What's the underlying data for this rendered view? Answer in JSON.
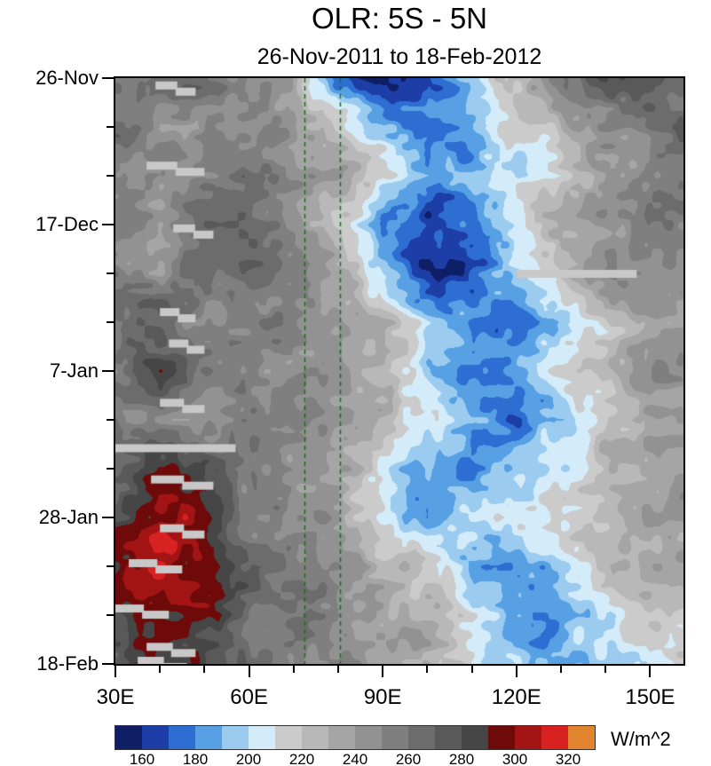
{
  "title": "OLR: 5S - 5N",
  "subtitle": "26-Nov-2011 to 18-Feb-2012",
  "colorbar_unit": "W/m^2",
  "chart_data": {
    "type": "heatmap",
    "title": "OLR: 5S - 5N",
    "subtitle": "26-Nov-2011 to 18-Feb-2012",
    "description": "Time-longitude (Hovmoller) plot of outgoing longwave radiation averaged 5S-5N",
    "x_axis": {
      "tick_labels": [
        "30E",
        "60E",
        "90E",
        "120E",
        "150E"
      ],
      "tick_values": [
        30,
        60,
        90,
        120,
        150
      ],
      "minor_step": 10,
      "range": [
        30,
        157.5
      ]
    },
    "y_axis": {
      "tick_labels": [
        "26-Nov",
        "17-Dec",
        "7-Jan",
        "28-Jan",
        "18-Feb"
      ],
      "tick_days": [
        0,
        21,
        42,
        63,
        84
      ],
      "minor_step_days": 7,
      "range_days": [
        0,
        84
      ],
      "start_date": "26-Nov-2011",
      "end_date": "18-Feb-2012"
    },
    "grid": {
      "lons": [
        30,
        40,
        50,
        60,
        70,
        80,
        90,
        100,
        110,
        120,
        130,
        140,
        150
      ],
      "times_days": [
        0,
        7,
        14,
        21,
        28,
        35,
        42,
        49,
        56,
        63,
        70,
        77,
        84
      ],
      "olr_values": [
        [
          252,
          248,
          258,
          250,
          240,
          175,
          160,
          185,
          205,
          235,
          255,
          272,
          268
        ],
        [
          258,
          252,
          246,
          252,
          248,
          225,
          195,
          170,
          185,
          215,
          235,
          250,
          262
        ],
        [
          250,
          244,
          256,
          262,
          252,
          238,
          222,
          196,
          182,
          198,
          218,
          238,
          252
        ],
        [
          262,
          240,
          268,
          256,
          248,
          212,
          178,
          162,
          178,
          208,
          238,
          252,
          258
        ],
        [
          255,
          250,
          262,
          266,
          246,
          232,
          188,
          158,
          172,
          198,
          228,
          242,
          252
        ],
        [
          252,
          270,
          246,
          252,
          256,
          244,
          228,
          202,
          178,
          168,
          188,
          218,
          238
        ],
        [
          262,
          292,
          266,
          250,
          242,
          246,
          222,
          192,
          178,
          192,
          208,
          228,
          242
        ],
        [
          256,
          252,
          246,
          256,
          250,
          240,
          228,
          212,
          188,
          178,
          198,
          218,
          232
        ],
        [
          272,
          296,
          286,
          260,
          250,
          244,
          212,
          188,
          184,
          196,
          212,
          228,
          238
        ],
        [
          282,
          302,
          290,
          264,
          254,
          244,
          204,
          174,
          196,
          212,
          222,
          232,
          242
        ],
        [
          292,
          312,
          300,
          270,
          254,
          248,
          234,
          212,
          192,
          184,
          202,
          218,
          232
        ],
        [
          286,
          306,
          294,
          264,
          258,
          250,
          240,
          224,
          204,
          188,
          184,
          202,
          222
        ],
        [
          272,
          296,
          284,
          258,
          254,
          250,
          244,
          230,
          214,
          198,
          188,
          196,
          212
        ]
      ]
    },
    "reference_lines": {
      "color": "#0a7a0a",
      "dash": true,
      "lons": [
        72.5,
        80.5
      ]
    },
    "missing_color": "#c8c8c8",
    "missing_blocks": [
      {
        "day": 1.5,
        "lon0": 39,
        "lon1": 48
      },
      {
        "day": 13,
        "lon0": 37,
        "lon1": 50
      },
      {
        "day": 22,
        "lon0": 43,
        "lon1": 52
      },
      {
        "day": 28,
        "lon0": 120,
        "lon1": 147
      },
      {
        "day": 34,
        "lon0": 40,
        "lon1": 48
      },
      {
        "day": 38.5,
        "lon0": 42,
        "lon1": 50
      },
      {
        "day": 47,
        "lon0": 40,
        "lon1": 50
      },
      {
        "day": 53,
        "lon0": 30,
        "lon1": 57
      },
      {
        "day": 58,
        "lon0": 38,
        "lon1": 52
      },
      {
        "day": 65,
        "lon0": 40,
        "lon1": 50
      },
      {
        "day": 70,
        "lon0": 33,
        "lon1": 45
      },
      {
        "day": 76.5,
        "lon0": 30,
        "lon1": 42
      },
      {
        "day": 82,
        "lon0": 37,
        "lon1": 48
      },
      {
        "day": 84,
        "lon0": 35,
        "lon1": 46
      }
    ],
    "colorbar": {
      "levels": [
        150,
        160,
        170,
        180,
        190,
        200,
        210,
        220,
        230,
        240,
        250,
        260,
        270,
        280,
        290,
        300,
        310,
        320,
        330
      ],
      "colors": [
        "#0e1f66",
        "#1c3ea6",
        "#2e6ed2",
        "#57a0e4",
        "#9bccf0",
        "#d4ecf9",
        "#cbcbcb",
        "#b8b8b8",
        "#a5a5a5",
        "#929292",
        "#7f7f7f",
        "#6c6c6c",
        "#595959",
        "#464646",
        "#6e0a0a",
        "#a31414",
        "#d82222",
        "#e2842e"
      ],
      "tick_labels": [
        "160",
        "180",
        "200",
        "220",
        "240",
        "260",
        "280",
        "300",
        "320"
      ],
      "tick_values": [
        160,
        180,
        200,
        220,
        240,
        260,
        280,
        300,
        320
      ],
      "unit": "W/m^2"
    }
  }
}
